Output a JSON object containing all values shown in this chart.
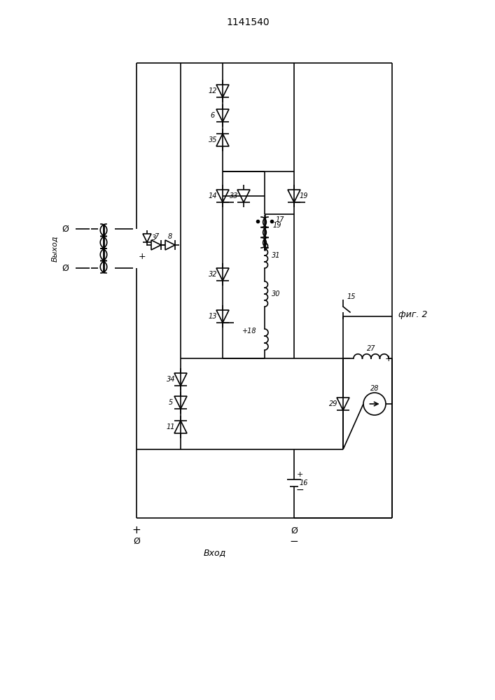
{
  "title": "1141540",
  "fig_label": "фиг. 2",
  "background": "#ffffff",
  "line_color": "#000000",
  "lw": 1.2,
  "vykhod": "Выход",
  "vkhod": "Вход"
}
